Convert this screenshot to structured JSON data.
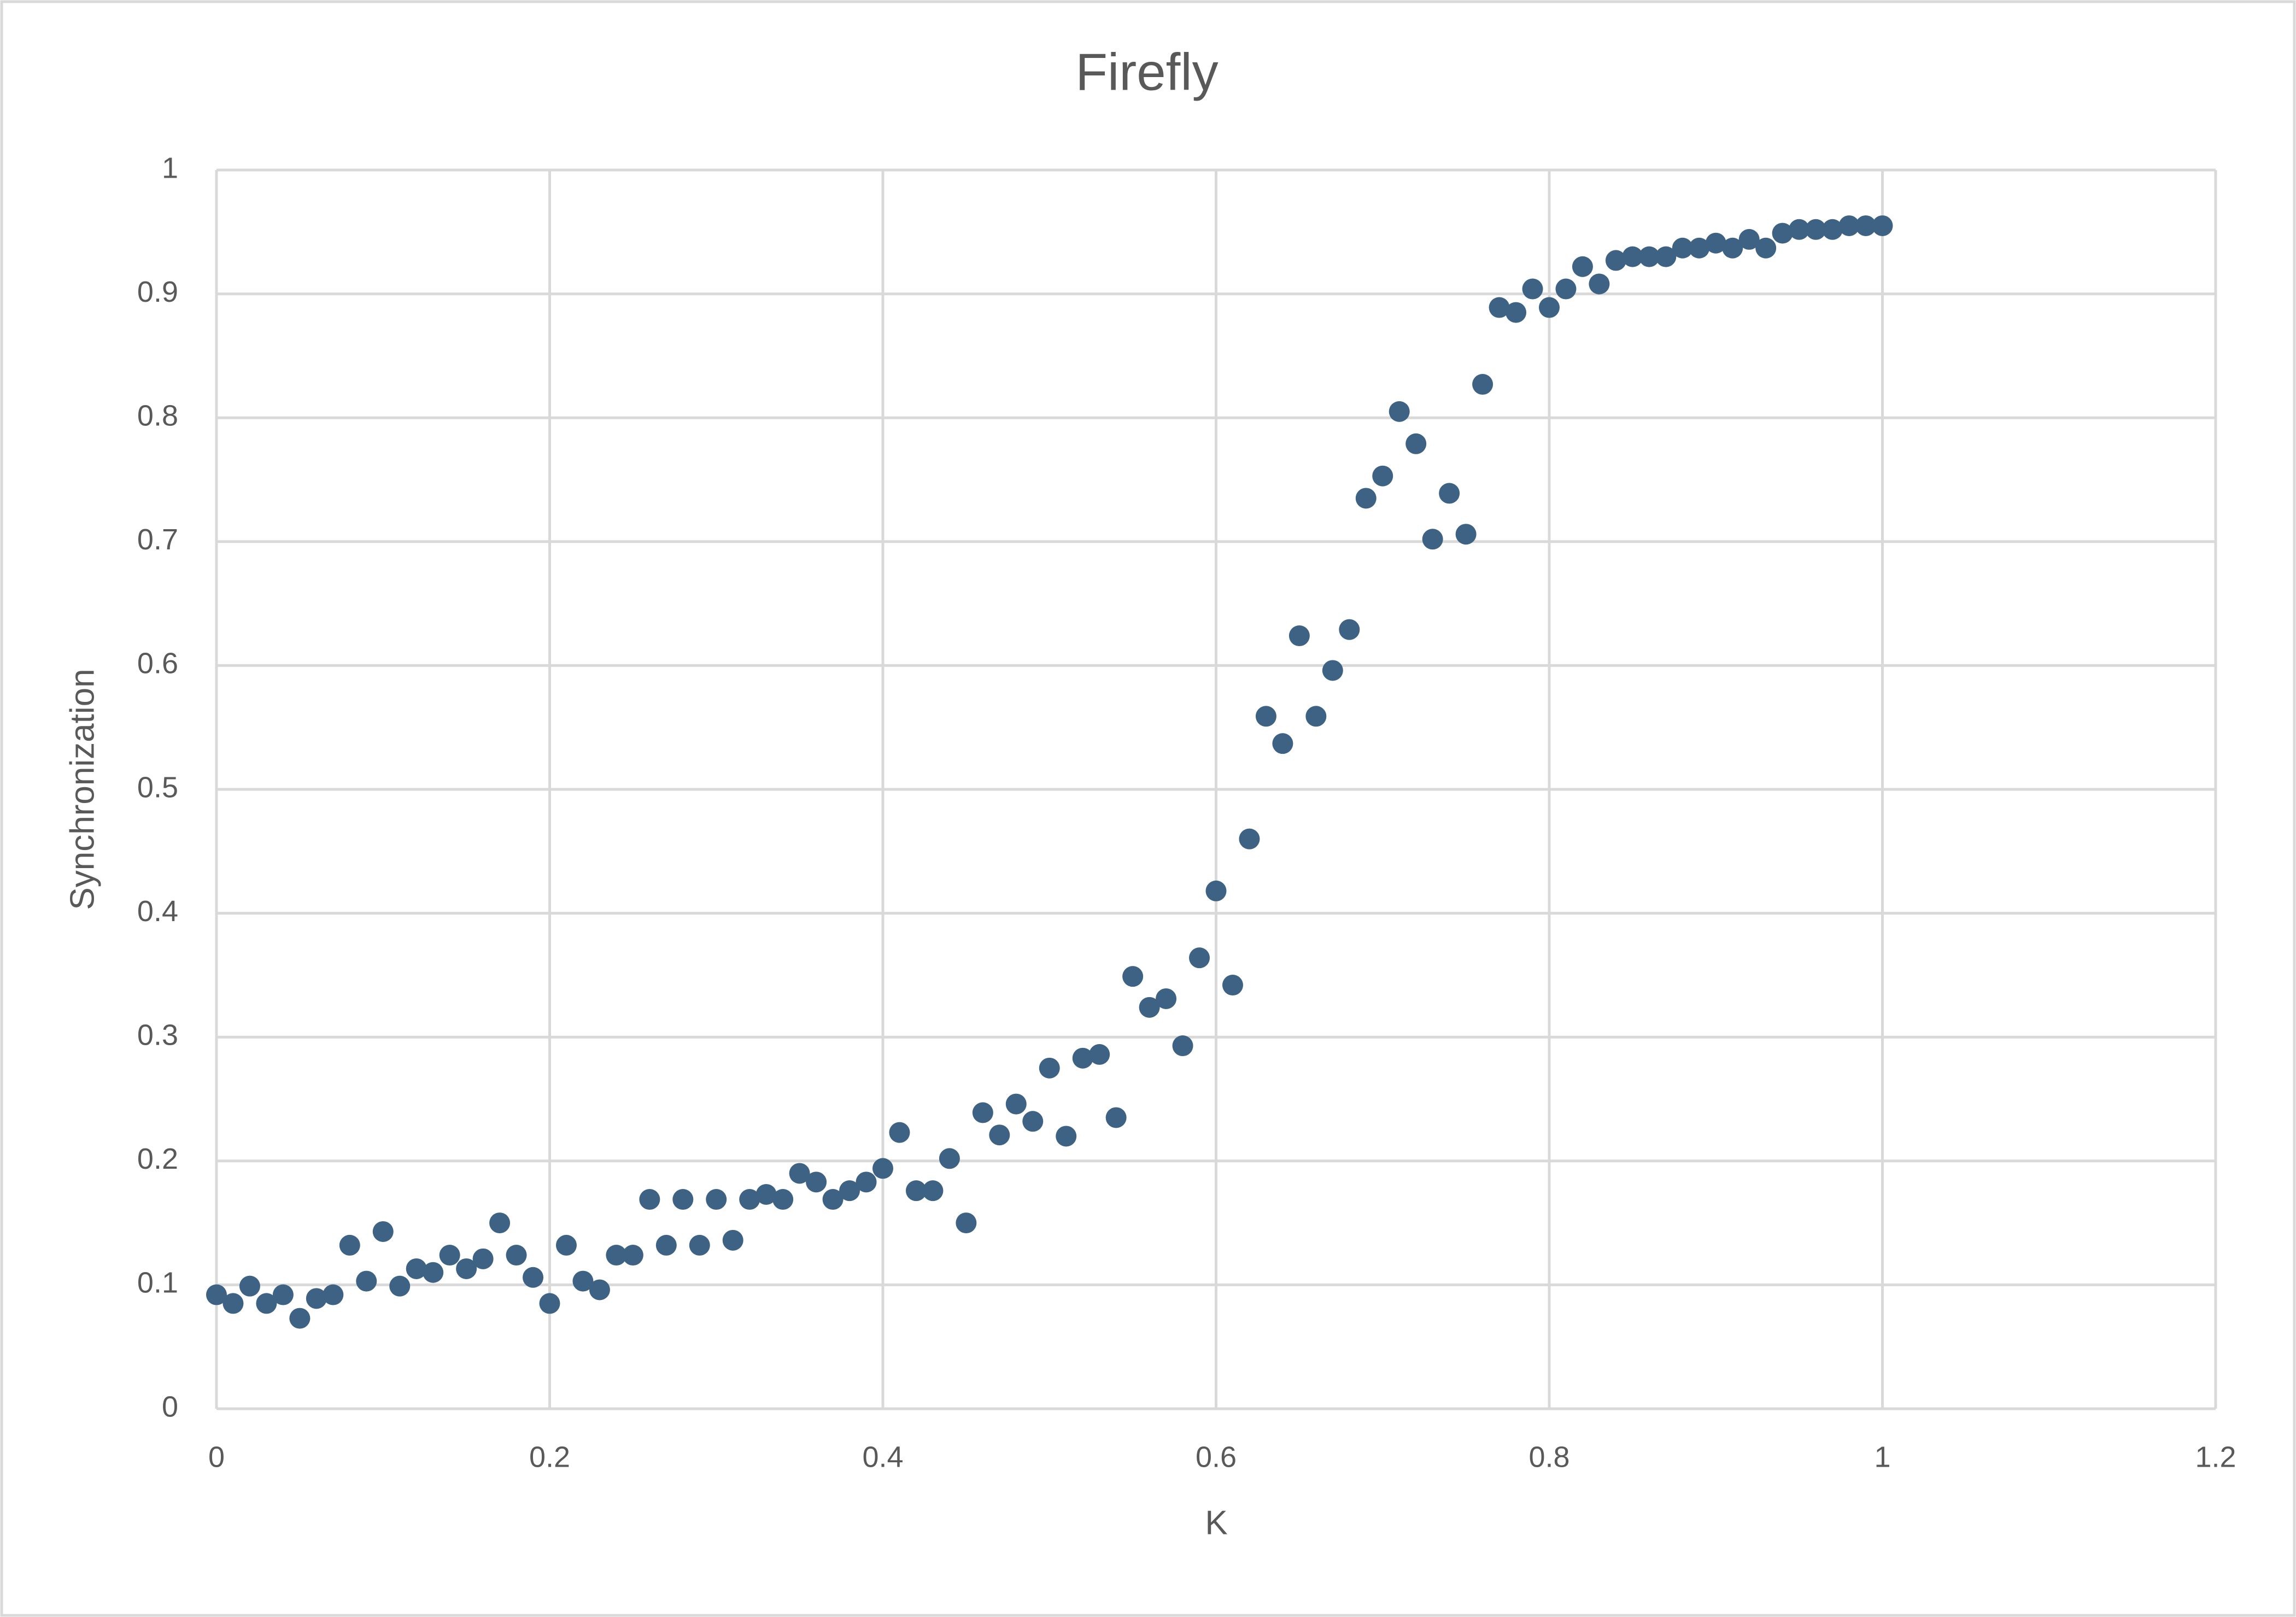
{
  "chart_data": {
    "type": "scatter",
    "title": "Firefly",
    "x_label": "K",
    "y_label": "Synchronization",
    "x": [
      0,
      0.01,
      0.02,
      0.03,
      0.04,
      0.05,
      0.06,
      0.07,
      0.08,
      0.09,
      0.1,
      0.11,
      0.12,
      0.13,
      0.14,
      0.15,
      0.16,
      0.17,
      0.18,
      0.19,
      0.2,
      0.21,
      0.22,
      0.23,
      0.24,
      0.25,
      0.26,
      0.27,
      0.28,
      0.29,
      0.3,
      0.31,
      0.32,
      0.33,
      0.34,
      0.35,
      0.36,
      0.37,
      0.38,
      0.39,
      0.4,
      0.41,
      0.42,
      0.43,
      0.44,
      0.45,
      0.46,
      0.47,
      0.48,
      0.49,
      0.5,
      0.51,
      0.52,
      0.53,
      0.54,
      0.55,
      0.56,
      0.57,
      0.58,
      0.59,
      0.6,
      0.61,
      0.62,
      0.63,
      0.64,
      0.65,
      0.66,
      0.67,
      0.68,
      0.69,
      0.7,
      0.71,
      0.72,
      0.73,
      0.74,
      0.75,
      0.76,
      0.77,
      0.78,
      0.79,
      0.8,
      0.81,
      0.82,
      0.83,
      0.84,
      0.85,
      0.86,
      0.87,
      0.88,
      0.89,
      0.9,
      0.91,
      0.92,
      0.93,
      0.94,
      0.95,
      0.96,
      0.97,
      0.98,
      0.99,
      1
    ],
    "series": [
      {
        "color": "#3e6283",
        "values": [
          0.092,
          0.085,
          0.099,
          0.085,
          0.092,
          0.073,
          0.089,
          0.092,
          0.132,
          0.103,
          0.143,
          0.099,
          0.113,
          0.11,
          0.124,
          0.113,
          0.121,
          0.15,
          0.124,
          0.106,
          0.085,
          0.132,
          0.103,
          0.096,
          0.124,
          0.124,
          0.169,
          0.132,
          0.169,
          0.132,
          0.169,
          0.136,
          0.169,
          0.173,
          0.169,
          0.19,
          0.183,
          0.169,
          0.176,
          0.183,
          0.194,
          0.223,
          0.176,
          0.176,
          0.202,
          0.15,
          0.239,
          0.221,
          0.246,
          0.232,
          0.275,
          0.22,
          0.283,
          0.286,
          0.235,
          0.349,
          0.324,
          0.331,
          0.293,
          0.364,
          0.418,
          0.342,
          0.46,
          0.559,
          0.537,
          0.624,
          0.559,
          0.596,
          0.629,
          0.735,
          0.753,
          0.805,
          0.779,
          0.702,
          0.739,
          0.706,
          0.827,
          0.889,
          0.885,
          0.904,
          0.889,
          0.904,
          0.922,
          0.908,
          0.927,
          0.93,
          0.93,
          0.93,
          0.937,
          0.937,
          0.941,
          0.937,
          0.944,
          0.937,
          0.949,
          0.952,
          0.952,
          0.952,
          0.955,
          0.955,
          0.955
        ]
      }
    ],
    "xlim": [
      0,
      1.2
    ],
    "xticks": [
      0,
      0.2,
      0.4,
      0.6,
      0.8,
      1,
      1.2
    ],
    "ylim": [
      0,
      1
    ],
    "yticks": [
      0,
      0.1,
      0.2,
      0.3,
      0.4,
      0.5,
      0.6,
      0.7,
      0.8,
      0.9,
      1
    ],
    "grid": true
  }
}
